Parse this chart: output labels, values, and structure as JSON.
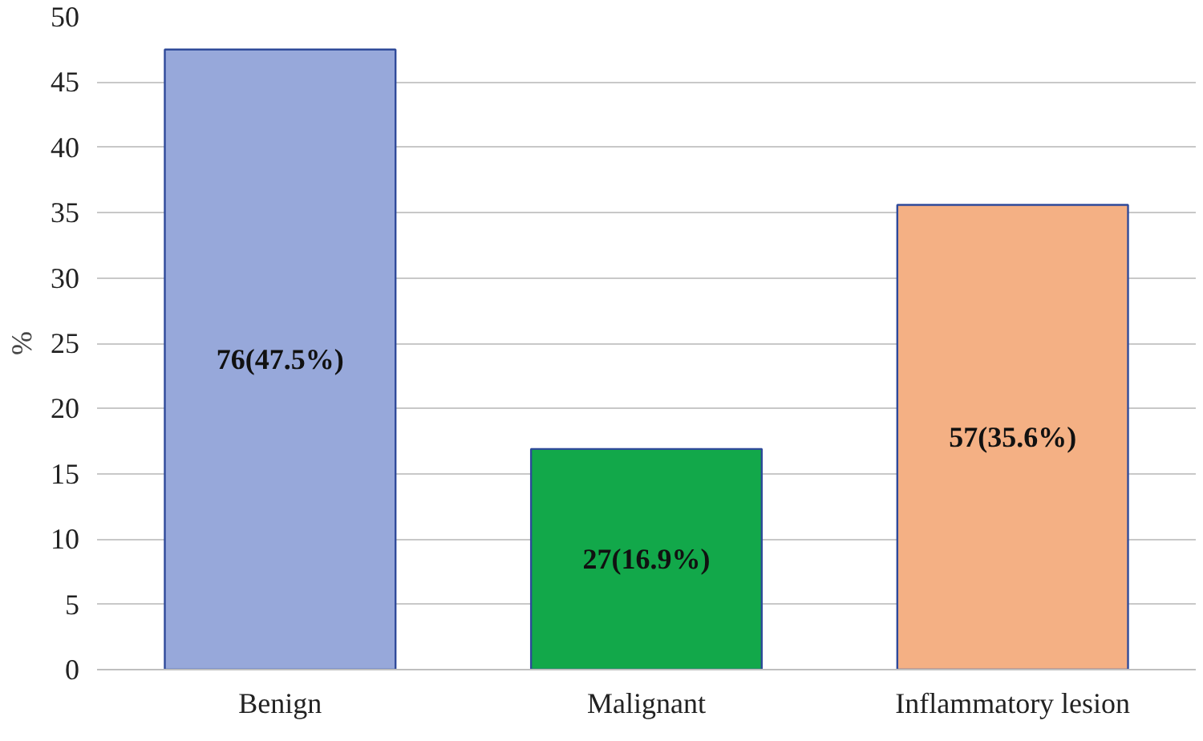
{
  "chart_data": {
    "type": "bar",
    "ylabel": "%",
    "categories": [
      "Benign",
      "Malignant",
      "Inflammatory lesion"
    ],
    "values": [
      47.5,
      16.9,
      35.6
    ],
    "colors": [
      "#97a8da",
      "#12a84a",
      "#f4b084"
    ],
    "value_labels": [
      "76(47.5%)",
      "27(16.9%)",
      "57(35.6%)"
    ],
    "ylim": [
      0,
      50
    ],
    "yticks": [
      0,
      5,
      10,
      15,
      20,
      25,
      30,
      35,
      40,
      45,
      50
    ],
    "grid": "y"
  }
}
